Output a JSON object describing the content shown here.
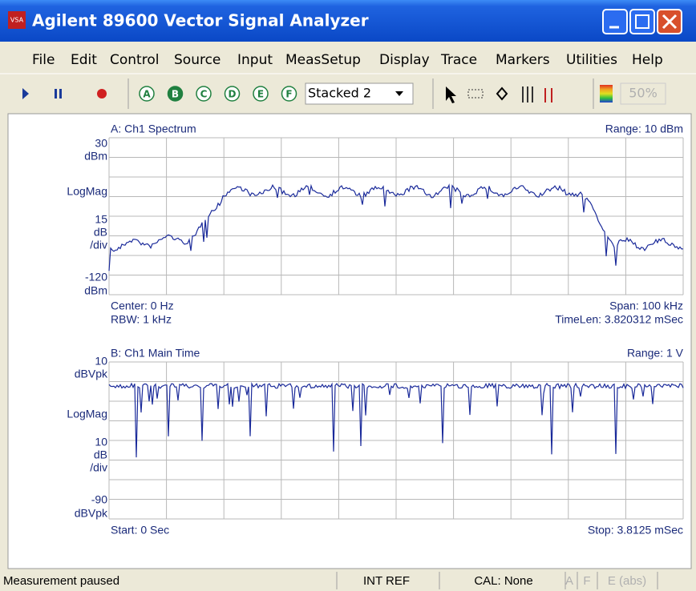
{
  "window": {
    "title": "Agilent 89600 Vector Signal Analyzer",
    "icon": "VSA"
  },
  "menu": [
    "File",
    "Edit",
    "Control",
    "Source",
    "Input",
    "MeasSetup",
    "Display",
    "Trace",
    "Markers",
    "Utilities",
    "Help"
  ],
  "toolbar": {
    "traces": [
      "A",
      "B",
      "C",
      "D",
      "E",
      "F"
    ],
    "layout": "Stacked 2",
    "zoom": "50%"
  },
  "panes": [
    {
      "title": "A: Ch1 Spectrum",
      "range": "Range: 10 dBm",
      "y_labels": [
        "30",
        "dBm",
        "LogMag",
        "15",
        "dB",
        "/div",
        "-120",
        "dBm"
      ],
      "footer_left": [
        "Center: 0  Hz",
        "RBW: 1 kHz"
      ],
      "footer_right": [
        "Span: 100 kHz",
        "TimeLen: 3.820312 mSec"
      ]
    },
    {
      "title": "B: Ch1 Main Time",
      "range": "Range: 1  V",
      "y_labels": [
        "10",
        "dBVpk",
        "LogMag",
        "10",
        "dB",
        "/div",
        "-90",
        "dBVpk"
      ],
      "footer_left": [
        "Start: 0  Sec"
      ],
      "footer_right": [
        "Stop: 3.8125 mSec"
      ]
    }
  ],
  "status": [
    "Measurement paused",
    "INT REF",
    "CAL: None",
    "A",
    "F",
    "E (abs)"
  ]
}
